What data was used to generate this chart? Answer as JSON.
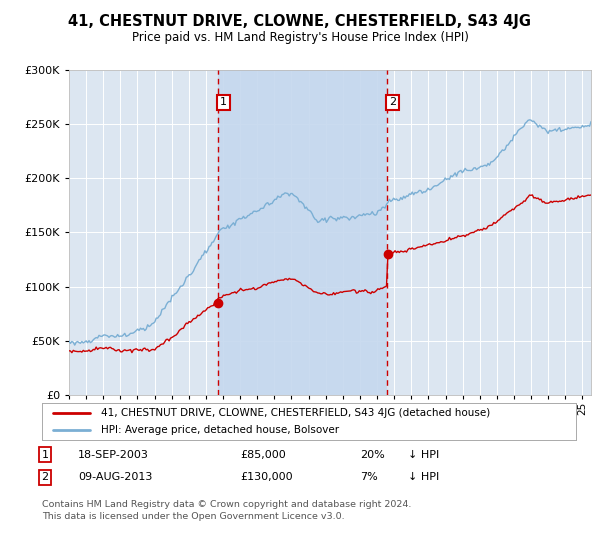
{
  "title": "41, CHESTNUT DRIVE, CLOWNE, CHESTERFIELD, S43 4JG",
  "subtitle": "Price paid vs. HM Land Registry's House Price Index (HPI)",
  "background_color": "#ffffff",
  "plot_bg_color": "#dce6f1",
  "shade_color": "#c5d8ee",
  "grid_color": "#ffffff",
  "sale1_date": 2003.72,
  "sale1_price": 85000,
  "sale2_date": 2013.6,
  "sale2_price": 130000,
  "legend_entries": [
    "41, CHESTNUT DRIVE, CLOWNE, CHESTERFIELD, S43 4JG (detached house)",
    "HPI: Average price, detached house, Bolsover"
  ],
  "hpi_color": "#7bafd4",
  "price_color": "#cc0000",
  "vline_color": "#cc0000",
  "xmin": 1995,
  "xmax": 2025.5,
  "ymin": 0,
  "ymax": 300000,
  "ytick_interval": 50000,
  "sale1_date_str": "18-SEP-2003",
  "sale1_price_str": "£85,000",
  "sale1_pct": "20%",
  "sale2_date_str": "09-AUG-2013",
  "sale2_price_str": "£130,000",
  "sale2_pct": "7%",
  "footer_text": "Contains HM Land Registry data © Crown copyright and database right 2024.\nThis data is licensed under the Open Government Licence v3.0."
}
